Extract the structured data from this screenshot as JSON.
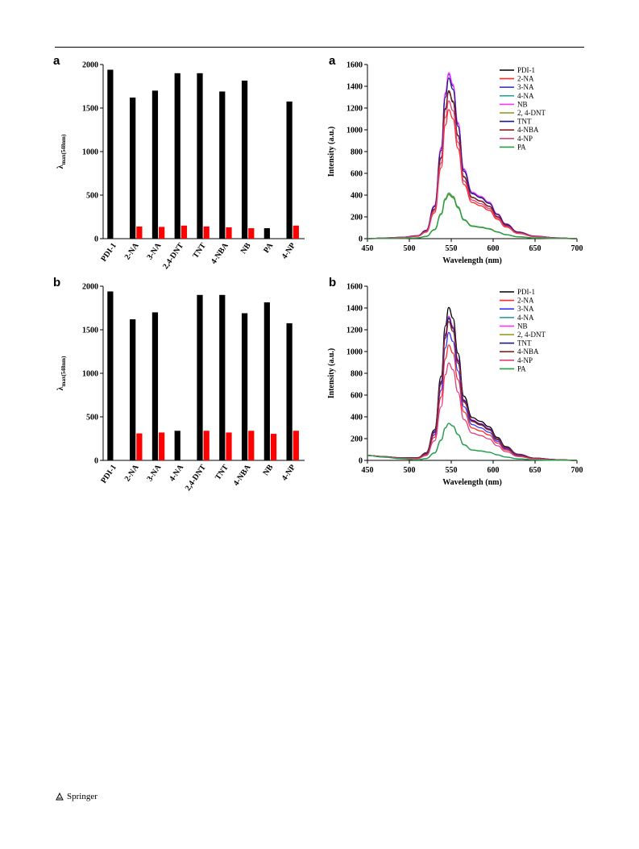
{
  "publisher": "Springer",
  "chart_data": [
    {
      "panel": "a",
      "type": "bar",
      "ylabel": "λmax(548nm)",
      "ylim": [
        0,
        2000
      ],
      "yticks": [
        0,
        500,
        1000,
        1500,
        2000
      ],
      "categories": [
        "PDI-1",
        "2-NA",
        "3-NA",
        "2,4-DNT",
        "TNT",
        "4-NBA",
        "NB",
        "PA",
        "4-NP"
      ],
      "colors": [
        "#000000",
        "#ff0000"
      ],
      "series": [
        {
          "values": [
            1940,
            1620,
            1700,
            1900,
            1900,
            1690,
            1815,
            120,
            1575
          ]
        },
        {
          "values": [
            null,
            140,
            135,
            150,
            140,
            130,
            120,
            null,
            150
          ]
        }
      ]
    },
    {
      "panel": "a",
      "type": "line",
      "xlabel": "Wavelength (nm)",
      "ylabel": "Intensity (a.u.)",
      "xlim": [
        450,
        700
      ],
      "ylim": [
        0,
        1600
      ],
      "xticks": [
        450,
        500,
        550,
        600,
        650,
        700
      ],
      "yticks": [
        0,
        200,
        400,
        600,
        800,
        1000,
        1200,
        1400,
        1600
      ],
      "legend_position": "top-right",
      "x": [
        450,
        470,
        490,
        510,
        520,
        530,
        538,
        543,
        547,
        552,
        558,
        565,
        575,
        585,
        595,
        605,
        615,
        630,
        650,
        675,
        700
      ],
      "shape": [
        0.0,
        0.004,
        0.008,
        0.018,
        0.05,
        0.2,
        0.55,
        0.88,
        1.0,
        0.93,
        0.7,
        0.42,
        0.28,
        0.255,
        0.22,
        0.15,
        0.09,
        0.04,
        0.015,
        0.005,
        0.0
      ],
      "series": [
        {
          "name": "PDI-1",
          "color": "#000000",
          "peak": 1350
        },
        {
          "name": "2-NA",
          "color": "#ff2a2a",
          "peak": 1185
        },
        {
          "name": "3-NA",
          "color": "#3333ff",
          "peak": 1510
        },
        {
          "name": "4-NA",
          "color": "#33a0a0",
          "peak": 420
        },
        {
          "name": "NB",
          "color": "#ff33ff",
          "peak": 1525
        },
        {
          "name": "2, 4-DNT",
          "color": "#8a9a1a",
          "peak": 415
        },
        {
          "name": "TNT",
          "color": "#1a1a80",
          "peak": 1475
        },
        {
          "name": "4-NBA",
          "color": "#8a2020",
          "peak": 1360
        },
        {
          "name": "4-NP",
          "color": "#e0407a",
          "peak": 1265
        },
        {
          "name": "PA",
          "color": "#22a040",
          "peak": 405
        }
      ]
    },
    {
      "panel": "b",
      "type": "bar",
      "ylabel": "λmax(548nm)",
      "ylim": [
        0,
        2000
      ],
      "yticks": [
        0,
        500,
        1000,
        1500,
        2000
      ],
      "categories": [
        "PDI-1",
        "2-NA",
        "3-NA",
        "4-NA",
        "2,4-DNT",
        "TNT",
        "4-NBA",
        "NB",
        "4-NP"
      ],
      "colors": [
        "#000000",
        "#ff0000"
      ],
      "series": [
        {
          "values": [
            1940,
            1620,
            1700,
            340,
            1900,
            1900,
            1690,
            1815,
            1575
          ]
        },
        {
          "values": [
            null,
            310,
            320,
            null,
            340,
            320,
            340,
            305,
            340
          ]
        }
      ]
    },
    {
      "panel": "b",
      "type": "line",
      "xlabel": "Wavelength (nm)",
      "ylabel": "Intensity (a.u.)",
      "xlim": [
        450,
        700
      ],
      "ylim": [
        0,
        1600
      ],
      "xticks": [
        450,
        500,
        550,
        600,
        650,
        700
      ],
      "yticks": [
        0,
        200,
        400,
        600,
        800,
        1000,
        1200,
        1400,
        1600
      ],
      "legend_position": "top-right",
      "x": [
        450,
        470,
        490,
        510,
        520,
        530,
        538,
        543,
        547,
        552,
        558,
        565,
        575,
        585,
        595,
        605,
        615,
        630,
        650,
        675,
        700
      ],
      "shape": [
        0.0,
        0.004,
        0.008,
        0.018,
        0.05,
        0.2,
        0.55,
        0.88,
        1.0,
        0.93,
        0.7,
        0.42,
        0.28,
        0.255,
        0.22,
        0.15,
        0.09,
        0.04,
        0.015,
        0.005,
        0.0
      ],
      "baseline_start": 45,
      "series": [
        {
          "name": "PDI-1",
          "color": "#000000",
          "peak": 1405
        },
        {
          "name": "2-NA",
          "color": "#ff2a2a",
          "peak": 1060
        },
        {
          "name": "3-NA",
          "color": "#3333ff",
          "peak": 1175
        },
        {
          "name": "4-NA",
          "color": "#33a0a0",
          "peak": 340
        },
        {
          "name": "NB",
          "color": "#ff33ff",
          "peak": 1325
        },
        {
          "name": "2, 4-DNT",
          "color": "#8a9a1a",
          "peak": 1300
        },
        {
          "name": "TNT",
          "color": "#1a1a80",
          "peak": 1310
        },
        {
          "name": "4-NBA",
          "color": "#8a2020",
          "peak": 1275
        },
        {
          "name": "4-NP",
          "color": "#e0407a",
          "peak": 895
        },
        {
          "name": "PA",
          "color": "#22a040",
          "peak": 340
        }
      ]
    }
  ]
}
